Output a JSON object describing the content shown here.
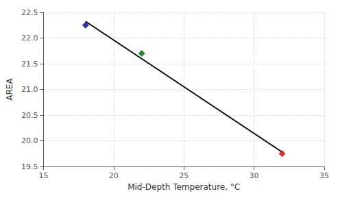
{
  "chart_data": {
    "type": "scatter",
    "xlabel": "Mid-Depth Temperature, °C",
    "ylabel": "AREA",
    "series": [
      {
        "type": "scatter",
        "x": [
          18,
          22,
          32
        ],
        "values": [
          22.25,
          21.7,
          19.75
        ],
        "colors": [
          "#00008B",
          "#006400",
          "#CC0000"
        ],
        "marker": "diamond"
      },
      {
        "type": "line",
        "x": [
          18,
          32
        ],
        "values": [
          22.3237179487,
          19.7794871795
        ],
        "color": "#000000",
        "line_style": "solid"
      }
    ],
    "xlim": [
      15,
      35
    ],
    "ylim": [
      19.5,
      22.5
    ],
    "xticks": [
      15,
      20,
      25,
      30,
      35
    ],
    "yticks": [
      19.5,
      {
        "value": 20,
        "label": "20.0"
      },
      20.5,
      {
        "value": 21,
        "label": "21.0"
      },
      21.5,
      {
        "value": 22,
        "label": "22.0"
      },
      22.5
    ],
    "grid": true
  }
}
